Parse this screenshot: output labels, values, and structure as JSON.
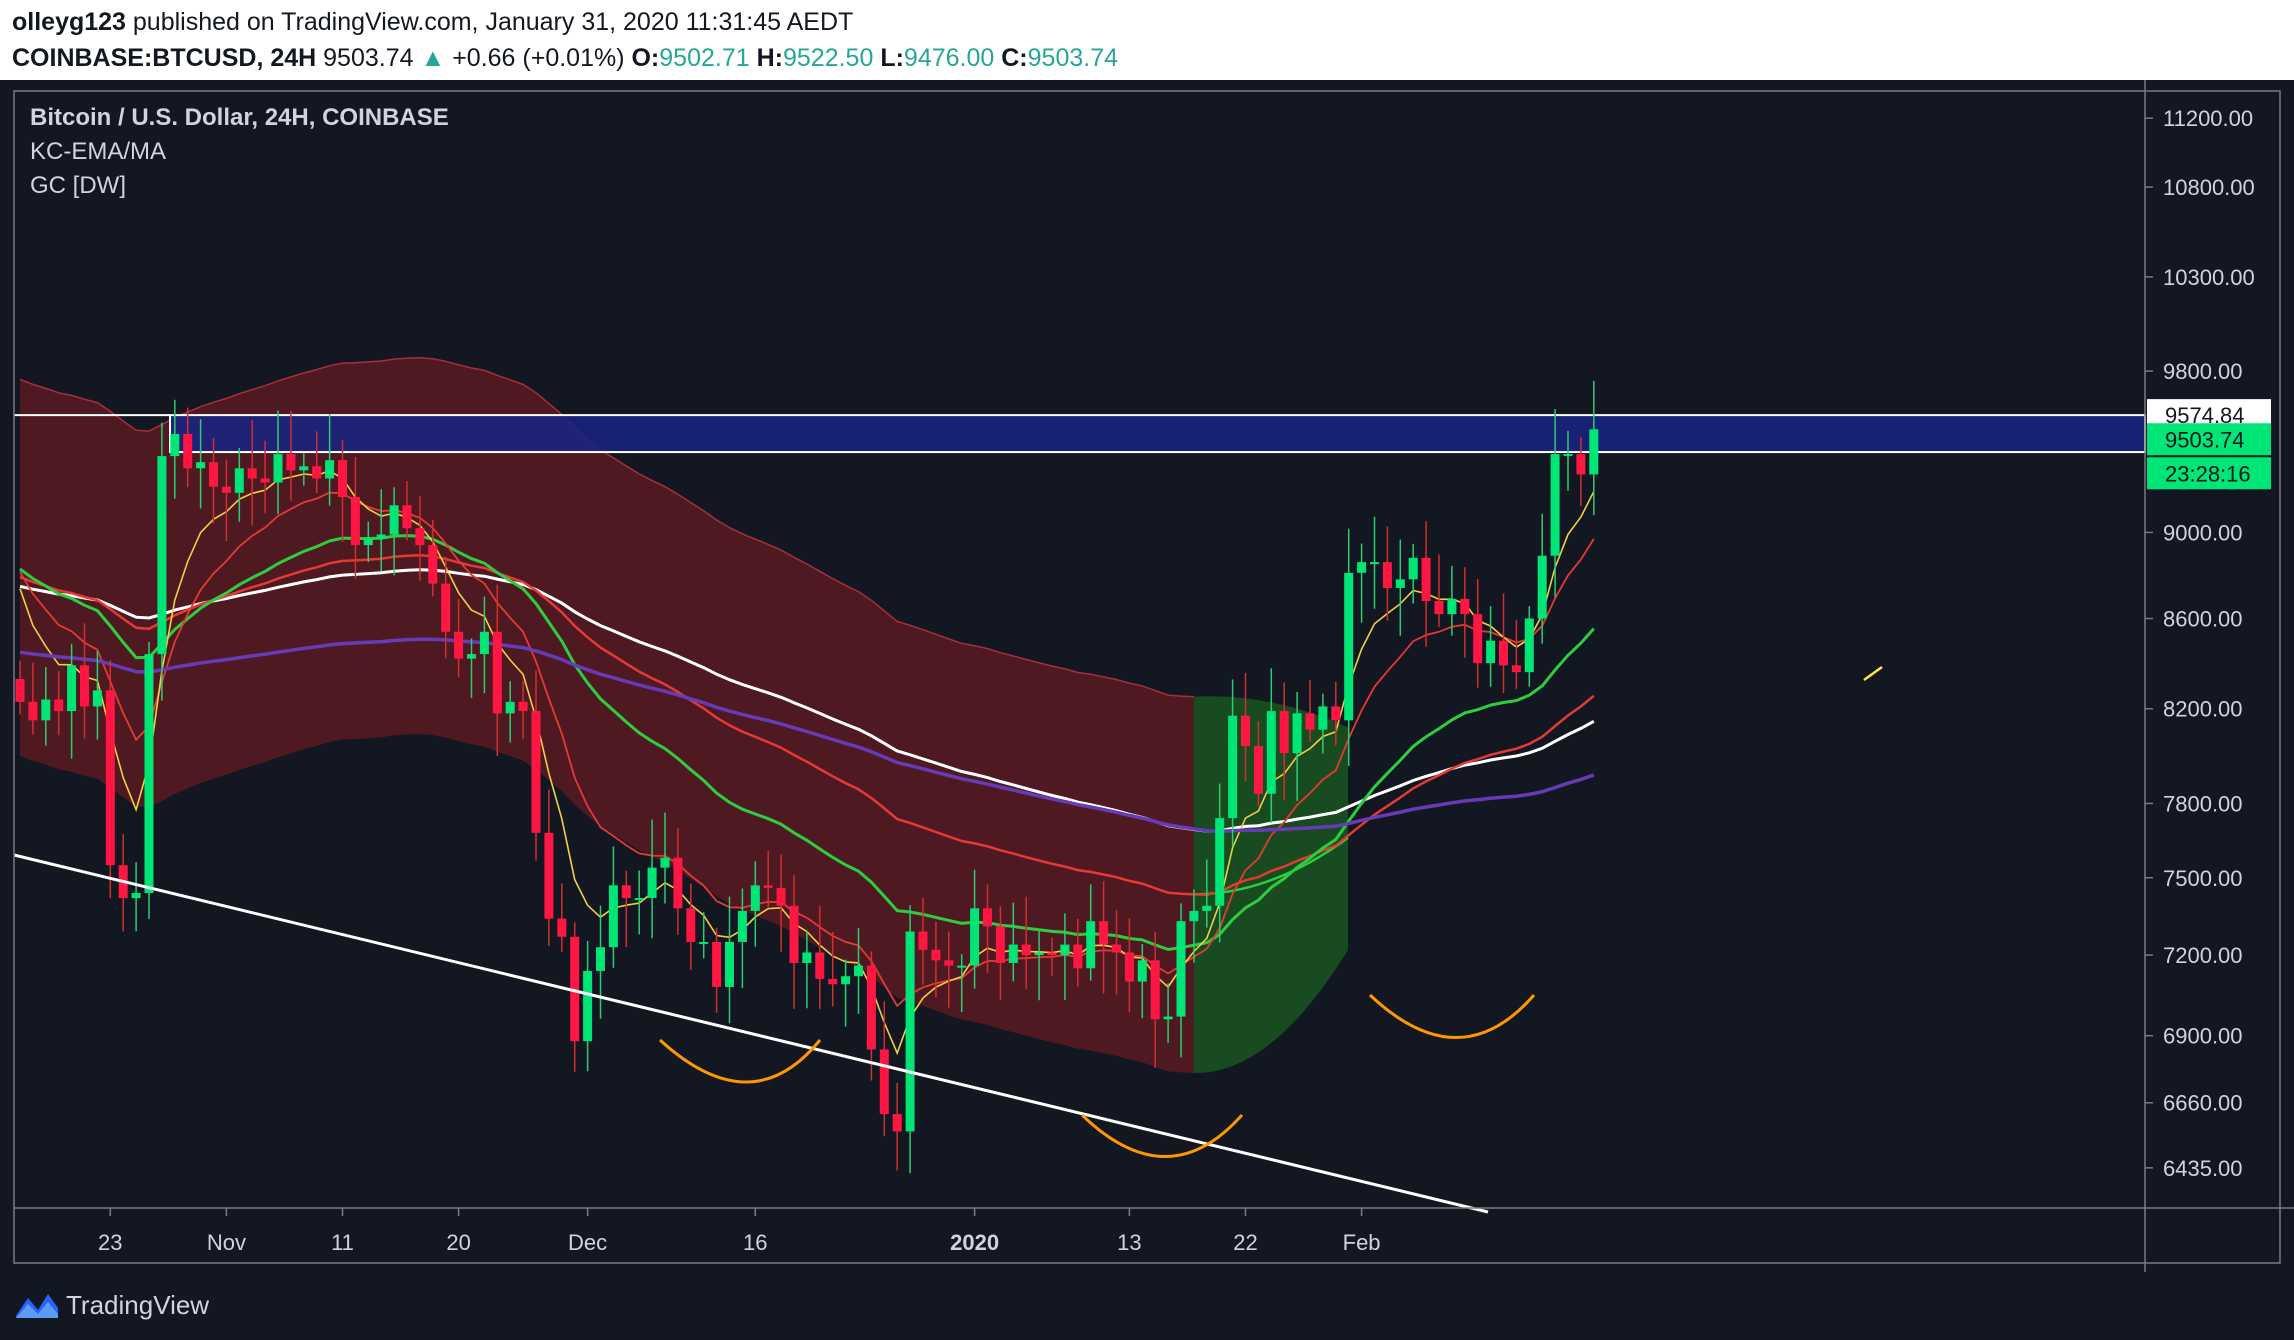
{
  "header": {
    "author": "olleyg123",
    "published": "published on TradingView.com, January 31, 2020 11:31:45 AEDT",
    "symbol": "COINBASE:BTCUSD, 24H",
    "price": "9503.74",
    "change": "+0.66 (+0.01%)",
    "o_label": "O:",
    "o": "9502.71",
    "h_label": "H:",
    "h": "9522.50",
    "l_label": "L:",
    "l": "9476.00",
    "c_label": "C:",
    "c": "9503.74"
  },
  "legend": {
    "title": "Bitcoin / U.S. Dollar, 24H, COINBASE",
    "ind1": "KC-EMA/MA",
    "ind2": "GC [DW]"
  },
  "footer": {
    "brand": "TradingView"
  },
  "colors": {
    "background": "#131722",
    "up": "#00e676",
    "down": "#ff1744",
    "channel": "#5a1a22",
    "forecast": "#1b5e20",
    "zone": "#1a237e"
  },
  "chart_data": {
    "type": "candlestick",
    "ylim": [
      6300,
      11350
    ],
    "y_scale": "log",
    "y_ticks": [
      "11200.00",
      "10800.00",
      "10300.00",
      "9800.00",
      "9000.00",
      "8600.00",
      "8200.00",
      "7800.00",
      "7500.00",
      "7200.00",
      "6900.00",
      "6660.00",
      "6435.00"
    ],
    "x_ticks": [
      "23",
      "Nov",
      "11",
      "20",
      "Dec",
      "16",
      "2020",
      "13",
      "22",
      "Feb"
    ],
    "price_labels": {
      "zone_top": "9574.84",
      "last": "9503.74",
      "countdown": "23:28:16"
    },
    "resistance_zone": [
      9390,
      9575
    ],
    "candles_close": [
      8230,
      8150,
      8240,
      8190,
      8390,
      8210,
      8280,
      7550,
      7420,
      7440,
      8440,
      9370,
      9480,
      9310,
      9340,
      9220,
      9190,
      9310,
      9260,
      9240,
      9380,
      9300,
      9320,
      9260,
      9350,
      9170,
      8940,
      8970,
      8990,
      9130,
      9020,
      8940,
      8760,
      8540,
      8420,
      8440,
      8540,
      8180,
      8230,
      8190,
      7680,
      7340,
      7270,
      6880,
      7140,
      7230,
      7470,
      7420,
      7420,
      7540,
      7580,
      7380,
      7250,
      7250,
      7080,
      7250,
      7370,
      7470,
      7460,
      7390,
      7170,
      7210,
      7110,
      7090,
      7120,
      7160,
      6850,
      6620,
      6560,
      7290,
      7220,
      7180,
      7160,
      7160,
      7380,
      7310,
      7170,
      7240,
      7200,
      7210,
      7200,
      7240,
      7150,
      7330,
      7240,
      7210,
      7100,
      7180,
      6960,
      6970,
      7330,
      7370,
      7390,
      7740,
      8170,
      8040,
      7840,
      8190,
      8010,
      8180,
      8110,
      8210,
      8150,
      8810,
      8860,
      8860,
      8740,
      8780,
      8880,
      8680,
      8620,
      8690,
      8620,
      8400,
      8500,
      8390,
      8360,
      8600,
      8890,
      9380,
      9380,
      9280,
      9503.74
    ]
  }
}
